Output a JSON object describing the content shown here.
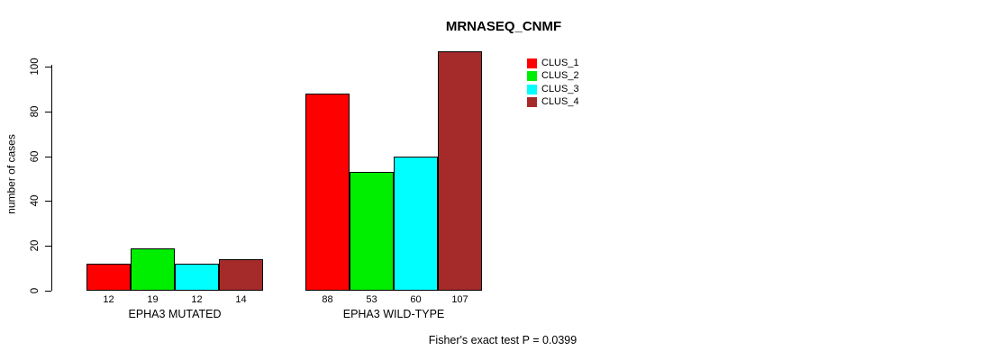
{
  "chart_data": {
    "type": "bar",
    "title": "MRNASEQ_CNMF",
    "ylabel": "number of cases",
    "annotation": "Fisher's exact test P = 0.0399",
    "yticks": [
      0,
      20,
      40,
      60,
      80,
      100
    ],
    "ylim": [
      0,
      107
    ],
    "grid": false,
    "legend_position": "top-right",
    "series": [
      {
        "name": "CLUS_1",
        "color": "#FF0000"
      },
      {
        "name": "CLUS_2",
        "color": "#00EE00"
      },
      {
        "name": "CLUS_3",
        "color": "#00FFFF"
      },
      {
        "name": "CLUS_4",
        "color": "#A52A2A"
      }
    ],
    "groups": [
      {
        "label": "EPHA3 MUTATED",
        "values": [
          12,
          19,
          12,
          14
        ]
      },
      {
        "label": "EPHA3 WILD-TYPE",
        "values": [
          88,
          53,
          60,
          107
        ]
      }
    ]
  }
}
